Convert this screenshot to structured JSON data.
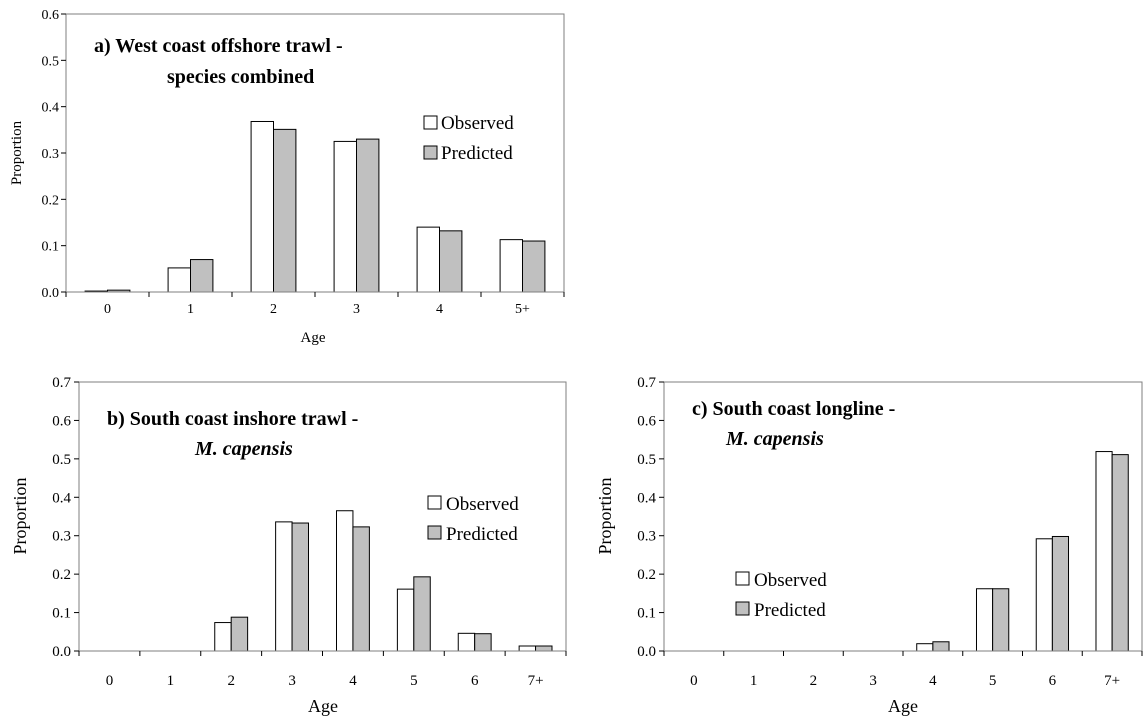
{
  "colors": {
    "observed_fill": "#ffffff",
    "predicted_fill": "#c0c0c0",
    "stroke": "#000000"
  },
  "chart_data": [
    {
      "type": "bar",
      "title": "a) West coast offshore trawl -",
      "subtitle": "species combined",
      "xlabel": "Age",
      "ylabel": "Proportion",
      "ylim": [
        0,
        0.6
      ],
      "yticks": [
        "0.0",
        "0.1",
        "0.2",
        "0.3",
        "0.4",
        "0.5",
        "0.6"
      ],
      "categories": [
        "0",
        "1",
        "2",
        "3",
        "4",
        "5+"
      ],
      "series": [
        {
          "name": "Observed",
          "values": [
            0.002,
            0.052,
            0.368,
            0.325,
            0.14,
            0.113
          ]
        },
        {
          "name": "Predicted",
          "values": [
            0.004,
            0.07,
            0.351,
            0.33,
            0.132,
            0.11
          ]
        }
      ],
      "legend": "right",
      "grid": false
    },
    {
      "type": "bar",
      "title": "b) South coast inshore trawl -",
      "subtitle": "M. capensis",
      "xlabel": "Age",
      "ylabel": "Proportion",
      "ylim": [
        0,
        0.7
      ],
      "yticks": [
        "0.0",
        "0.1",
        "0.2",
        "0.3",
        "0.4",
        "0.5",
        "0.6",
        "0.7"
      ],
      "categories": [
        "0",
        "1",
        "2",
        "3",
        "4",
        "5",
        "6",
        "7+"
      ],
      "series": [
        {
          "name": "Observed",
          "values": [
            0,
            0,
            0.074,
            0.336,
            0.365,
            0.161,
            0.046,
            0.013
          ]
        },
        {
          "name": "Predicted",
          "values": [
            0,
            0,
            0.088,
            0.333,
            0.323,
            0.193,
            0.045,
            0.013
          ]
        }
      ],
      "legend": "right",
      "grid": false
    },
    {
      "type": "bar",
      "title": "c) South coast longline -",
      "subtitle": "M. capensis",
      "xlabel": "Age",
      "ylabel": "Proportion",
      "ylim": [
        0,
        0.7
      ],
      "yticks": [
        "0.0",
        "0.1",
        "0.2",
        "0.3",
        "0.4",
        "0.5",
        "0.6",
        "0.7"
      ],
      "categories": [
        "0",
        "1",
        "2",
        "3",
        "4",
        "5",
        "6",
        "7+"
      ],
      "series": [
        {
          "name": "Observed",
          "values": [
            0,
            0,
            0,
            0,
            0.019,
            0.162,
            0.292,
            0.519
          ]
        },
        {
          "name": "Predicted",
          "values": [
            0,
            0,
            0,
            0,
            0.024,
            0.162,
            0.298,
            0.511
          ]
        }
      ],
      "legend": "left",
      "grid": false
    }
  ]
}
